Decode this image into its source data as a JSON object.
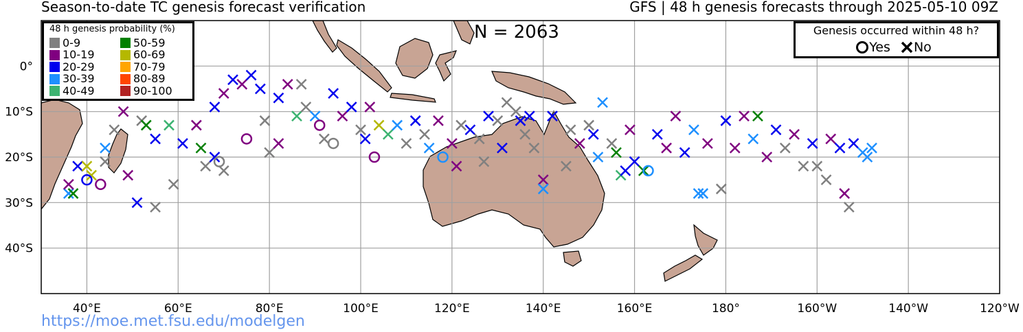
{
  "header": {
    "title_left": "Season-to-date TC genesis forecast verification",
    "title_right": "GFS | 48 h genesis forecasts through 2025-05-10 09Z"
  },
  "count_label": "N = 2063",
  "source_url": "https://moe.met.fsu.edu/modelgen",
  "map": {
    "extent": {
      "lon_min": 30,
      "lon_max": 240,
      "lat_min": -50,
      "lat_max": 10
    },
    "lon_ticks": [
      {
        "lon": 40,
        "label": "40°E"
      },
      {
        "lon": 60,
        "label": "60°E"
      },
      {
        "lon": 80,
        "label": "80°E"
      },
      {
        "lon": 100,
        "label": "100°E"
      },
      {
        "lon": 120,
        "label": "120°E"
      },
      {
        "lon": 140,
        "label": "140°E"
      },
      {
        "lon": 160,
        "label": "160°E"
      },
      {
        "lon": 180,
        "label": "180°"
      },
      {
        "lon": 200,
        "label": "160°W"
      },
      {
        "lon": 220,
        "label": "140°W"
      },
      {
        "lon": 240,
        "label": "120°W"
      }
    ],
    "lat_ticks": [
      {
        "lat": 0,
        "label": "0°"
      },
      {
        "lat": -10,
        "label": "10°S"
      },
      {
        "lat": -20,
        "label": "20°S"
      },
      {
        "lat": -30,
        "label": "30°S"
      },
      {
        "lat": -40,
        "label": "40°S"
      }
    ],
    "colors": {
      "land": "#c8a494",
      "ocean": "#ffffff",
      "grid": "#a0a0a0",
      "coast": "#000000"
    }
  },
  "legend_probability": {
    "title": "48 h genesis probability (%)",
    "bins": [
      {
        "label": "0-9",
        "color": "#808080"
      },
      {
        "label": "10-19",
        "color": "#800080"
      },
      {
        "label": "20-29",
        "color": "#0000ee"
      },
      {
        "label": "30-39",
        "color": "#1e90ff"
      },
      {
        "label": "40-49",
        "color": "#3cb371"
      },
      {
        "label": "50-59",
        "color": "#008000"
      },
      {
        "label": "60-69",
        "color": "#b5b800"
      },
      {
        "label": "70-79",
        "color": "#ffa500"
      },
      {
        "label": "80-89",
        "color": "#ff4500"
      },
      {
        "label": "90-100",
        "color": "#b22222"
      }
    ]
  },
  "legend_outcome": {
    "title": "Genesis occurred within 48 h?",
    "yes_label": "Yes",
    "no_label": "No"
  },
  "forecasts_sample": [
    {
      "lon": 36,
      "lat": -28,
      "bin": 3,
      "yes": false
    },
    {
      "lon": 37,
      "lat": -28,
      "bin": 5,
      "yes": false
    },
    {
      "lon": 36,
      "lat": -26,
      "bin": 1,
      "yes": false
    },
    {
      "lon": 38,
      "lat": -22,
      "bin": 2,
      "yes": false
    },
    {
      "lon": 40,
      "lat": -22,
      "bin": 6,
      "yes": false
    },
    {
      "lon": 41,
      "lat": -24,
      "bin": 6,
      "yes": false
    },
    {
      "lon": 40,
      "lat": -25,
      "bin": 2,
      "yes": true
    },
    {
      "lon": 43,
      "lat": -26,
      "bin": 1,
      "yes": true
    },
    {
      "lon": 44,
      "lat": -18,
      "bin": 3,
      "yes": false
    },
    {
      "lon": 44,
      "lat": -21,
      "bin": 0,
      "yes": false
    },
    {
      "lon": 46,
      "lat": -14,
      "bin": 0,
      "yes": false
    },
    {
      "lon": 48,
      "lat": -10,
      "bin": 1,
      "yes": false
    },
    {
      "lon": 49,
      "lat": -24,
      "bin": 1,
      "yes": false
    },
    {
      "lon": 52,
      "lat": -12,
      "bin": 0,
      "yes": false
    },
    {
      "lon": 53,
      "lat": -13,
      "bin": 5,
      "yes": false
    },
    {
      "lon": 55,
      "lat": -16,
      "bin": 2,
      "yes": false
    },
    {
      "lon": 51,
      "lat": -30,
      "bin": 2,
      "yes": false
    },
    {
      "lon": 55,
      "lat": -31,
      "bin": 0,
      "yes": false
    },
    {
      "lon": 58,
      "lat": -13,
      "bin": 4,
      "yes": false
    },
    {
      "lon": 59,
      "lat": -26,
      "bin": 0,
      "yes": false
    },
    {
      "lon": 61,
      "lat": -17,
      "bin": 2,
      "yes": false
    },
    {
      "lon": 64,
      "lat": -13,
      "bin": 1,
      "yes": false
    },
    {
      "lon": 65,
      "lat": -18,
      "bin": 5,
      "yes": false
    },
    {
      "lon": 66,
      "lat": -22,
      "bin": 0,
      "yes": false
    },
    {
      "lon": 68,
      "lat": -20,
      "bin": 2,
      "yes": false
    },
    {
      "lon": 69,
      "lat": -21,
      "bin": 0,
      "yes": true
    },
    {
      "lon": 70,
      "lat": -23,
      "bin": 0,
      "yes": false
    },
    {
      "lon": 68,
      "lat": -9,
      "bin": 2,
      "yes": false
    },
    {
      "lon": 70,
      "lat": -6,
      "bin": 1,
      "yes": false
    },
    {
      "lon": 72,
      "lat": -3,
      "bin": 2,
      "yes": false
    },
    {
      "lon": 74,
      "lat": -4,
      "bin": 1,
      "yes": false
    },
    {
      "lon": 75,
      "lat": -16,
      "bin": 1,
      "yes": true
    },
    {
      "lon": 76,
      "lat": -2,
      "bin": 2,
      "yes": false
    },
    {
      "lon": 78,
      "lat": -5,
      "bin": 2,
      "yes": false
    },
    {
      "lon": 79,
      "lat": -12,
      "bin": 0,
      "yes": false
    },
    {
      "lon": 80,
      "lat": -19,
      "bin": 0,
      "yes": false
    },
    {
      "lon": 82,
      "lat": -17,
      "bin": 1,
      "yes": false
    },
    {
      "lon": 82,
      "lat": -7,
      "bin": 2,
      "yes": false
    },
    {
      "lon": 84,
      "lat": -4,
      "bin": 1,
      "yes": false
    },
    {
      "lon": 86,
      "lat": -11,
      "bin": 4,
      "yes": false
    },
    {
      "lon": 87,
      "lat": -4,
      "bin": 0,
      "yes": false
    },
    {
      "lon": 88,
      "lat": -9,
      "bin": 0,
      "yes": false
    },
    {
      "lon": 90,
      "lat": -11,
      "bin": 3,
      "yes": false
    },
    {
      "lon": 91,
      "lat": -13,
      "bin": 1,
      "yes": true
    },
    {
      "lon": 92,
      "lat": -16,
      "bin": 0,
      "yes": false
    },
    {
      "lon": 94,
      "lat": -6,
      "bin": 2,
      "yes": false
    },
    {
      "lon": 94,
      "lat": -17,
      "bin": 0,
      "yes": true
    },
    {
      "lon": 96,
      "lat": -11,
      "bin": 1,
      "yes": false
    },
    {
      "lon": 98,
      "lat": -9,
      "bin": 2,
      "yes": false
    },
    {
      "lon": 100,
      "lat": -14,
      "bin": 0,
      "yes": false
    },
    {
      "lon": 101,
      "lat": -16,
      "bin": 2,
      "yes": false
    },
    {
      "lon": 102,
      "lat": -9,
      "bin": 1,
      "yes": false
    },
    {
      "lon": 103,
      "lat": -20,
      "bin": 1,
      "yes": true
    },
    {
      "lon": 104,
      "lat": -13,
      "bin": 6,
      "yes": false
    },
    {
      "lon": 106,
      "lat": -15,
      "bin": 4,
      "yes": false
    },
    {
      "lon": 108,
      "lat": -13,
      "bin": 3,
      "yes": false
    },
    {
      "lon": 110,
      "lat": -17,
      "bin": 0,
      "yes": false
    },
    {
      "lon": 112,
      "lat": -12,
      "bin": 2,
      "yes": false
    },
    {
      "lon": 114,
      "lat": -15,
      "bin": 0,
      "yes": false
    },
    {
      "lon": 115,
      "lat": -18,
      "bin": 3,
      "yes": false
    },
    {
      "lon": 117,
      "lat": -12,
      "bin": 1,
      "yes": false
    },
    {
      "lon": 118,
      "lat": -20,
      "bin": 3,
      "yes": true
    },
    {
      "lon": 120,
      "lat": -17,
      "bin": 1,
      "yes": false
    },
    {
      "lon": 121,
      "lat": -22,
      "bin": 1,
      "yes": false
    },
    {
      "lon": 122,
      "lat": -13,
      "bin": 0,
      "yes": false
    },
    {
      "lon": 124,
      "lat": -14,
      "bin": 2,
      "yes": false
    },
    {
      "lon": 126,
      "lat": -16,
      "bin": 0,
      "yes": false
    },
    {
      "lon": 127,
      "lat": -21,
      "bin": 0,
      "yes": false
    },
    {
      "lon": 128,
      "lat": -11,
      "bin": 2,
      "yes": false
    },
    {
      "lon": 130,
      "lat": -12,
      "bin": 0,
      "yes": false
    },
    {
      "lon": 131,
      "lat": -18,
      "bin": 2,
      "yes": false
    },
    {
      "lon": 132,
      "lat": -8,
      "bin": 0,
      "yes": false
    },
    {
      "lon": 134,
      "lat": -10,
      "bin": 0,
      "yes": false
    },
    {
      "lon": 135,
      "lat": -12,
      "bin": 2,
      "yes": false
    },
    {
      "lon": 136,
      "lat": -15,
      "bin": 0,
      "yes": false
    },
    {
      "lon": 137,
      "lat": -11,
      "bin": 2,
      "yes": false
    },
    {
      "lon": 138,
      "lat": -18,
      "bin": 0,
      "yes": false
    },
    {
      "lon": 140,
      "lat": -25,
      "bin": 1,
      "yes": false
    },
    {
      "lon": 140,
      "lat": -27,
      "bin": 3,
      "yes": false
    },
    {
      "lon": 142,
      "lat": -11,
      "bin": 2,
      "yes": false
    },
    {
      "lon": 145,
      "lat": -22,
      "bin": 0,
      "yes": false
    },
    {
      "lon": 146,
      "lat": -14,
      "bin": 0,
      "yes": false
    },
    {
      "lon": 148,
      "lat": -17,
      "bin": 1,
      "yes": false
    },
    {
      "lon": 150,
      "lat": -13,
      "bin": 0,
      "yes": false
    },
    {
      "lon": 151,
      "lat": -15,
      "bin": 2,
      "yes": false
    },
    {
      "lon": 152,
      "lat": -20,
      "bin": 3,
      "yes": false
    },
    {
      "lon": 153,
      "lat": -8,
      "bin": 3,
      "yes": false
    },
    {
      "lon": 155,
      "lat": -17,
      "bin": 0,
      "yes": false
    },
    {
      "lon": 156,
      "lat": -19,
      "bin": 5,
      "yes": false
    },
    {
      "lon": 157,
      "lat": -24,
      "bin": 4,
      "yes": false
    },
    {
      "lon": 158,
      "lat": -23,
      "bin": 2,
      "yes": false
    },
    {
      "lon": 159,
      "lat": -14,
      "bin": 1,
      "yes": false
    },
    {
      "lon": 160,
      "lat": -21,
      "bin": 2,
      "yes": false
    },
    {
      "lon": 162,
      "lat": -23,
      "bin": 5,
      "yes": false
    },
    {
      "lon": 163,
      "lat": -23,
      "bin": 3,
      "yes": true
    },
    {
      "lon": 165,
      "lat": -15,
      "bin": 2,
      "yes": false
    },
    {
      "lon": 167,
      "lat": -18,
      "bin": 1,
      "yes": false
    },
    {
      "lon": 169,
      "lat": -11,
      "bin": 1,
      "yes": false
    },
    {
      "lon": 171,
      "lat": -19,
      "bin": 2,
      "yes": false
    },
    {
      "lon": 173,
      "lat": -14,
      "bin": 3,
      "yes": false
    },
    {
      "lon": 174,
      "lat": -28,
      "bin": 3,
      "yes": false
    },
    {
      "lon": 175,
      "lat": -28,
      "bin": 3,
      "yes": false
    },
    {
      "lon": 176,
      "lat": -17,
      "bin": 1,
      "yes": false
    },
    {
      "lon": 179,
      "lat": -27,
      "bin": 0,
      "yes": false
    },
    {
      "lon": 180,
      "lat": -12,
      "bin": 2,
      "yes": false
    },
    {
      "lon": 182,
      "lat": -18,
      "bin": 1,
      "yes": false
    },
    {
      "lon": 184,
      "lat": -11,
      "bin": 1,
      "yes": false
    },
    {
      "lon": 186,
      "lat": -16,
      "bin": 3,
      "yes": false
    },
    {
      "lon": 187,
      "lat": -11,
      "bin": 5,
      "yes": false
    },
    {
      "lon": 189,
      "lat": -20,
      "bin": 1,
      "yes": false
    },
    {
      "lon": 191,
      "lat": -14,
      "bin": 2,
      "yes": false
    },
    {
      "lon": 193,
      "lat": -18,
      "bin": 0,
      "yes": false
    },
    {
      "lon": 195,
      "lat": -15,
      "bin": 1,
      "yes": false
    },
    {
      "lon": 197,
      "lat": -22,
      "bin": 0,
      "yes": false
    },
    {
      "lon": 199,
      "lat": -17,
      "bin": 2,
      "yes": false
    },
    {
      "lon": 200,
      "lat": -22,
      "bin": 0,
      "yes": false
    },
    {
      "lon": 202,
      "lat": -25,
      "bin": 0,
      "yes": false
    },
    {
      "lon": 203,
      "lat": -16,
      "bin": 1,
      "yes": false
    },
    {
      "lon": 205,
      "lat": -18,
      "bin": 2,
      "yes": false
    },
    {
      "lon": 206,
      "lat": -28,
      "bin": 1,
      "yes": false
    },
    {
      "lon": 207,
      "lat": -31,
      "bin": 0,
      "yes": false
    },
    {
      "lon": 208,
      "lat": -17,
      "bin": 2,
      "yes": false
    },
    {
      "lon": 210,
      "lat": -19,
      "bin": 3,
      "yes": false
    },
    {
      "lon": 211,
      "lat": -20,
      "bin": 3,
      "yes": false
    },
    {
      "lon": 212,
      "lat": -18,
      "bin": 3,
      "yes": false
    }
  ]
}
